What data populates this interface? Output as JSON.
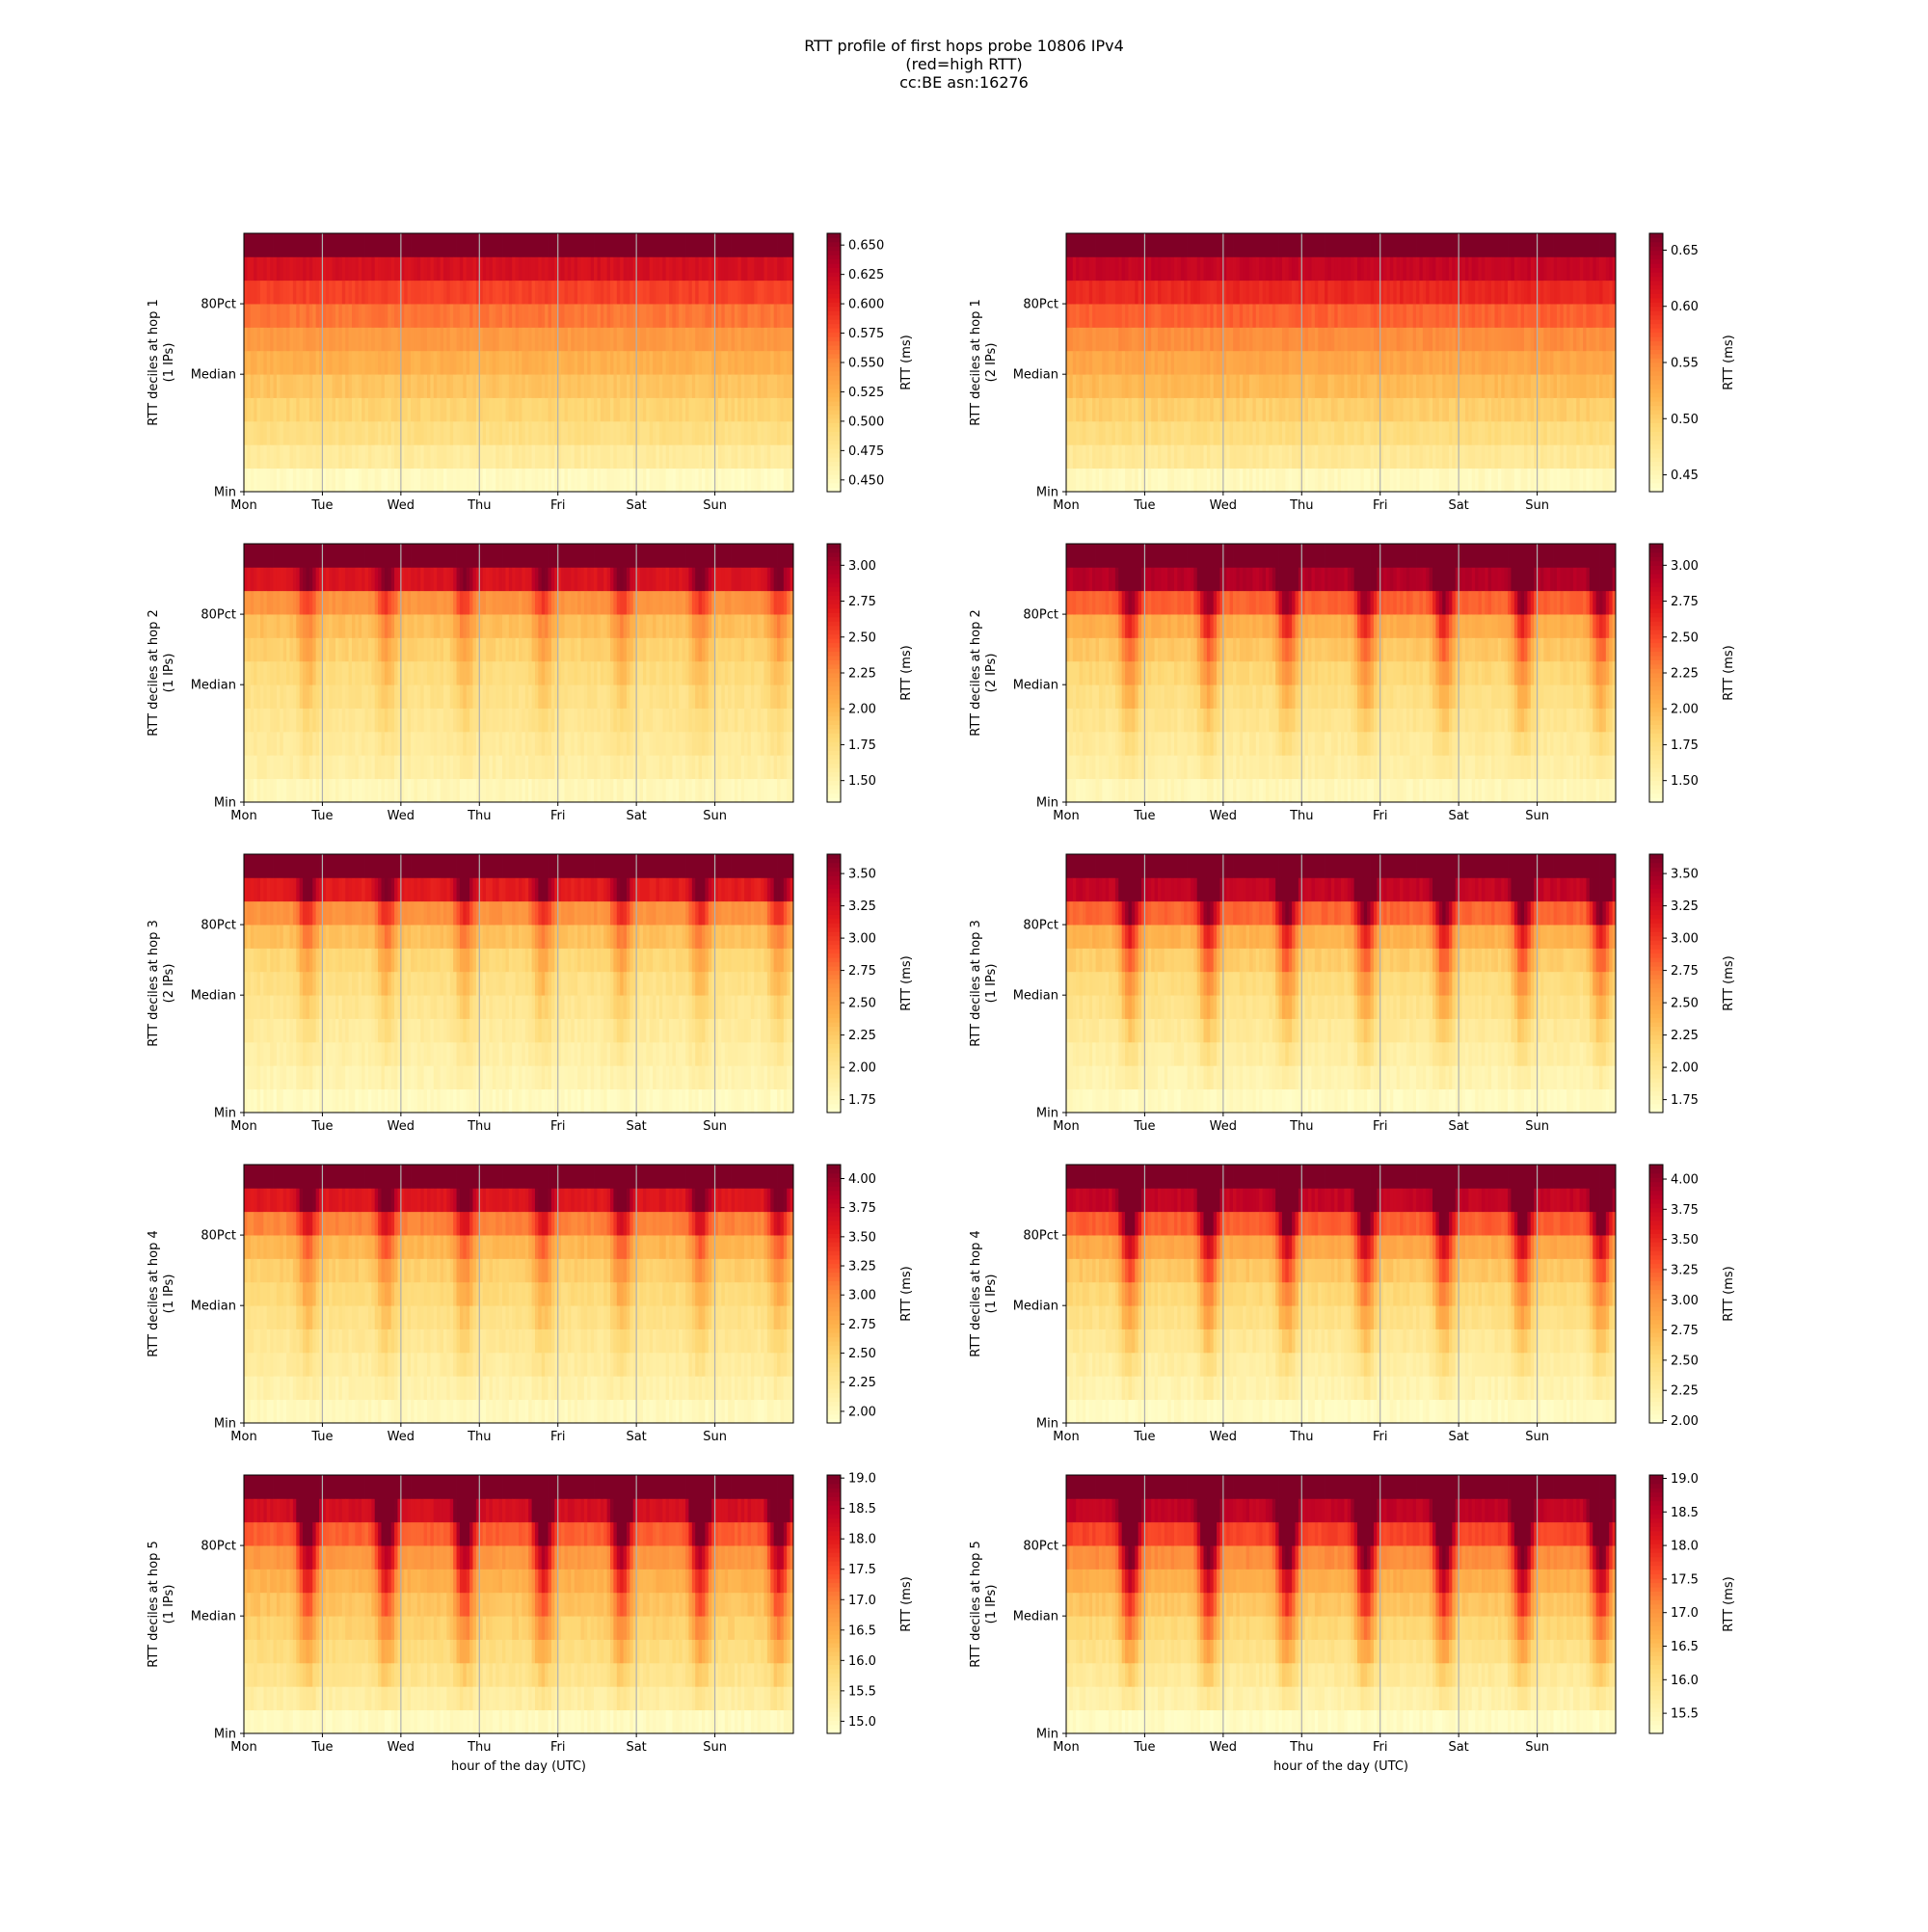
{
  "figure": {
    "title_lines": [
      "RTT profile of first hops probe 10806 IPv4",
      "(red=high RTT)",
      "cc:BE asn:16276"
    ],
    "xlabel": "hour of the day (UTC)",
    "colorbar_label": "RTT (ms)",
    "colormap": [
      "#ffffcc",
      "#ffeda0",
      "#fed976",
      "#feb24c",
      "#fd8d3c",
      "#fc4e2a",
      "#e31a1c",
      "#bd0026",
      "#800026"
    ],
    "grid": "vertical day lines"
  },
  "chart_data": [
    {
      "type": "heatmap",
      "ylabel": "RTT deciles at hop 1",
      "ylabel2": "(1 IPs)",
      "x_ticks": [
        "Mon",
        "Tue",
        "Wed",
        "Thu",
        "Fri",
        "Sat",
        "Sun"
      ],
      "y_ticks": [
        "Min",
        "Median",
        "80Pct"
      ],
      "colorbar_ticks": [
        "0.450",
        "0.475",
        "0.500",
        "0.525",
        "0.550",
        "0.575",
        "0.600",
        "0.625",
        "0.650"
      ],
      "colorbar_range": [
        0.44,
        0.66
      ],
      "deciles": [
        0.447,
        0.47,
        0.487,
        0.498,
        0.51,
        0.524,
        0.54,
        0.56,
        0.585,
        0.615,
        0.66
      ],
      "daily_peak_spread": 0.0
    },
    {
      "type": "heatmap",
      "ylabel": "RTT deciles at hop 1",
      "ylabel2": "(2 IPs)",
      "x_ticks": [
        "Mon",
        "Tue",
        "Wed",
        "Thu",
        "Fri",
        "Sat",
        "Sun"
      ],
      "y_ticks": [
        "Min",
        "Median",
        "80Pct"
      ],
      "colorbar_ticks": [
        "0.45",
        "0.50",
        "0.55",
        "0.60",
        "0.65"
      ],
      "colorbar_range": [
        0.435,
        0.665
      ],
      "deciles": [
        0.445,
        0.47,
        0.487,
        0.5,
        0.515,
        0.53,
        0.548,
        0.57,
        0.6,
        0.63,
        0.665
      ],
      "daily_peak_spread": 0.0
    },
    {
      "type": "heatmap",
      "ylabel": "RTT deciles at hop 2",
      "ylabel2": "(1 IPs)",
      "x_ticks": [
        "Mon",
        "Tue",
        "Wed",
        "Thu",
        "Fri",
        "Sat",
        "Sun"
      ],
      "y_ticks": [
        "Min",
        "Median",
        "80Pct"
      ],
      "colorbar_ticks": [
        "1.50",
        "1.75",
        "2.00",
        "2.25",
        "2.50",
        "2.75",
        "3.00"
      ],
      "colorbar_range": [
        1.35,
        3.15
      ],
      "deciles": [
        1.45,
        1.55,
        1.6,
        1.65,
        1.7,
        1.76,
        1.84,
        1.95,
        2.2,
        2.75,
        3.15
      ],
      "daily_peak_spread": 0.3
    },
    {
      "type": "heatmap",
      "ylabel": "RTT deciles at hop 2",
      "ylabel2": "(2 IPs)",
      "x_ticks": [
        "Mon",
        "Tue",
        "Wed",
        "Thu",
        "Fri",
        "Sat",
        "Sun"
      ],
      "y_ticks": [
        "Min",
        "Median",
        "80Pct"
      ],
      "colorbar_ticks": [
        "1.50",
        "1.75",
        "2.00",
        "2.25",
        "2.50",
        "2.75",
        "3.00"
      ],
      "colorbar_range": [
        1.35,
        3.15
      ],
      "deciles": [
        1.45,
        1.55,
        1.6,
        1.66,
        1.72,
        1.8,
        1.9,
        2.05,
        2.4,
        2.95,
        3.15
      ],
      "daily_peak_spread": 0.55
    },
    {
      "type": "heatmap",
      "ylabel": "RTT deciles at hop 3",
      "ylabel2": "(2 IPs)",
      "x_ticks": [
        "Mon",
        "Tue",
        "Wed",
        "Thu",
        "Fri",
        "Sat",
        "Sun"
      ],
      "y_ticks": [
        "Min",
        "Median",
        "80Pct"
      ],
      "colorbar_ticks": [
        "1.75",
        "2.00",
        "2.25",
        "2.50",
        "2.75",
        "3.00",
        "3.25",
        "3.50"
      ],
      "colorbar_range": [
        1.65,
        3.65
      ],
      "deciles": [
        1.72,
        1.8,
        1.86,
        1.92,
        1.98,
        2.05,
        2.14,
        2.3,
        2.6,
        3.15,
        3.65
      ],
      "daily_peak_spread": 0.35
    },
    {
      "type": "heatmap",
      "ylabel": "RTT deciles at hop 3",
      "ylabel2": "(1 IPs)",
      "x_ticks": [
        "Mon",
        "Tue",
        "Wed",
        "Thu",
        "Fri",
        "Sat",
        "Sun"
      ],
      "y_ticks": [
        "Min",
        "Median",
        "80Pct"
      ],
      "colorbar_ticks": [
        "1.75",
        "2.00",
        "2.25",
        "2.50",
        "2.75",
        "3.00",
        "3.25",
        "3.50"
      ],
      "colorbar_range": [
        1.65,
        3.65
      ],
      "deciles": [
        1.72,
        1.8,
        1.87,
        1.94,
        2.02,
        2.1,
        2.22,
        2.4,
        2.8,
        3.35,
        3.65
      ],
      "daily_peak_spread": 0.6
    },
    {
      "type": "heatmap",
      "ylabel": "RTT deciles at hop 4",
      "ylabel2": "(1 IPs)",
      "x_ticks": [
        "Mon",
        "Tue",
        "Wed",
        "Thu",
        "Fri",
        "Sat",
        "Sun"
      ],
      "y_ticks": [
        "Min",
        "Median",
        "80Pct"
      ],
      "colorbar_ticks": [
        "2.00",
        "2.25",
        "2.50",
        "2.75",
        "3.00",
        "3.25",
        "3.50",
        "3.75",
        "4.00"
      ],
      "colorbar_range": [
        1.9,
        4.12
      ],
      "deciles": [
        2.0,
        2.1,
        2.18,
        2.25,
        2.33,
        2.42,
        2.53,
        2.7,
        3.05,
        3.6,
        4.12
      ],
      "daily_peak_spread": 0.4
    },
    {
      "type": "heatmap",
      "ylabel": "RTT deciles at hop 4",
      "ylabel2": "(1 IPs)",
      "x_ticks": [
        "Mon",
        "Tue",
        "Wed",
        "Thu",
        "Fri",
        "Sat",
        "Sun"
      ],
      "y_ticks": [
        "Min",
        "Median",
        "80Pct"
      ],
      "colorbar_ticks": [
        "2.00",
        "2.25",
        "2.50",
        "2.75",
        "3.00",
        "3.25",
        "3.50",
        "3.75",
        "4.00"
      ],
      "colorbar_range": [
        1.98,
        4.12
      ],
      "deciles": [
        2.05,
        2.15,
        2.22,
        2.3,
        2.4,
        2.5,
        2.64,
        2.85,
        3.25,
        3.8,
        4.12
      ],
      "daily_peak_spread": 0.65
    },
    {
      "type": "heatmap",
      "ylabel": "RTT deciles at hop 5",
      "ylabel2": "(1 IPs)",
      "x_ticks": [
        "Mon",
        "Tue",
        "Wed",
        "Thu",
        "Fri",
        "Sat",
        "Sun"
      ],
      "y_ticks": [
        "Min",
        "Median",
        "80Pct"
      ],
      "colorbar_ticks": [
        "15.0",
        "15.5",
        "16.0",
        "16.5",
        "17.0",
        "17.5",
        "18.0",
        "18.5",
        "19.0"
      ],
      "colorbar_range": [
        14.8,
        19.05
      ],
      "deciles": [
        14.95,
        15.3,
        15.55,
        15.75,
        15.95,
        16.15,
        16.4,
        16.75,
        17.3,
        18.2,
        19.05
      ],
      "daily_peak_spread": 0.7
    },
    {
      "type": "heatmap",
      "ylabel": "RTT deciles at hop 5",
      "ylabel2": "(1 IPs)",
      "x_ticks": [
        "Mon",
        "Tue",
        "Wed",
        "Thu",
        "Fri",
        "Sat",
        "Sun"
      ],
      "y_ticks": [
        "Min",
        "Median",
        "80Pct"
      ],
      "colorbar_ticks": [
        "15.5",
        "16.0",
        "16.5",
        "17.0",
        "17.5",
        "18.0",
        "18.5",
        "19.0"
      ],
      "colorbar_range": [
        15.2,
        19.05
      ],
      "deciles": [
        15.3,
        15.55,
        15.75,
        15.95,
        16.15,
        16.4,
        16.7,
        17.1,
        17.7,
        18.5,
        19.05
      ],
      "daily_peak_spread": 0.85
    }
  ]
}
